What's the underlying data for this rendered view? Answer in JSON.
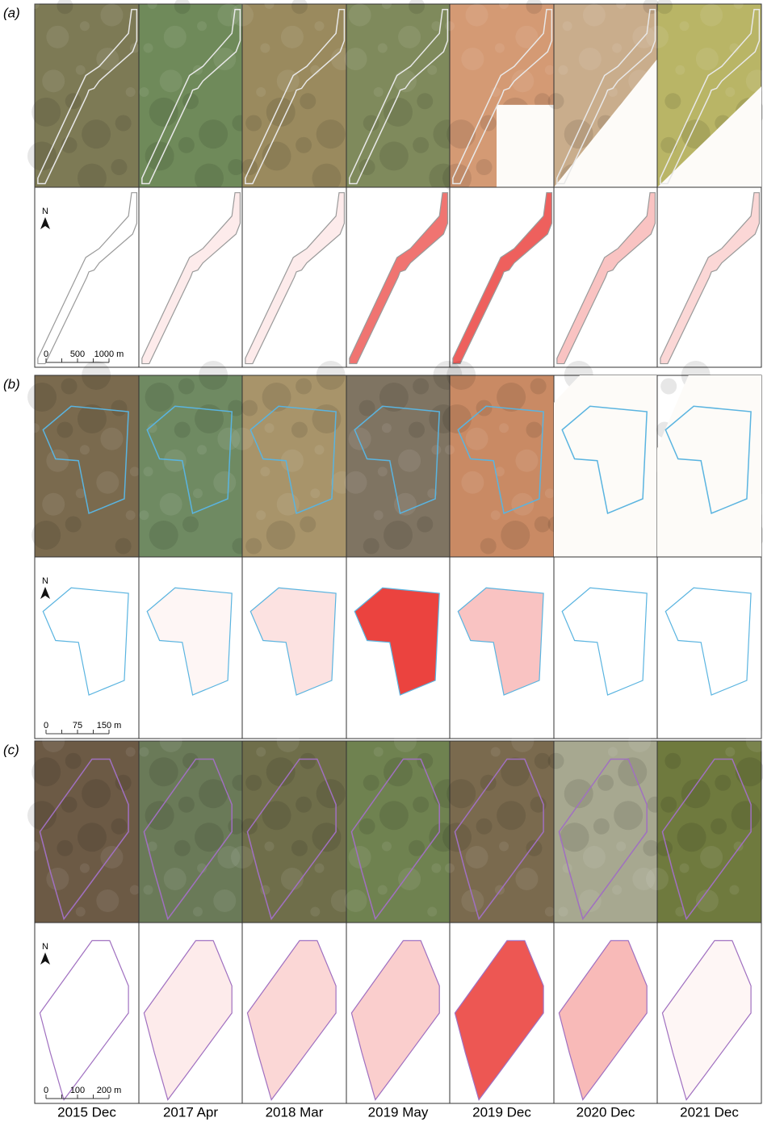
{
  "panels": [
    {
      "label": "(a)",
      "north": "N",
      "scale_bar": [
        "0",
        "500",
        "1000 m"
      ]
    },
    {
      "label": "(b)",
      "north": "N",
      "scale_bar": [
        "0",
        "75",
        "150 m"
      ]
    },
    {
      "label": "(c)",
      "north": "N",
      "scale_bar": [
        "0",
        "100",
        "200 m"
      ]
    }
  ],
  "dates": [
    "2015 Dec",
    "2017 Apr",
    "2018 Mar",
    "2019 May",
    "2019 Dec",
    "2020 Dec",
    "2021 Dec"
  ]
}
